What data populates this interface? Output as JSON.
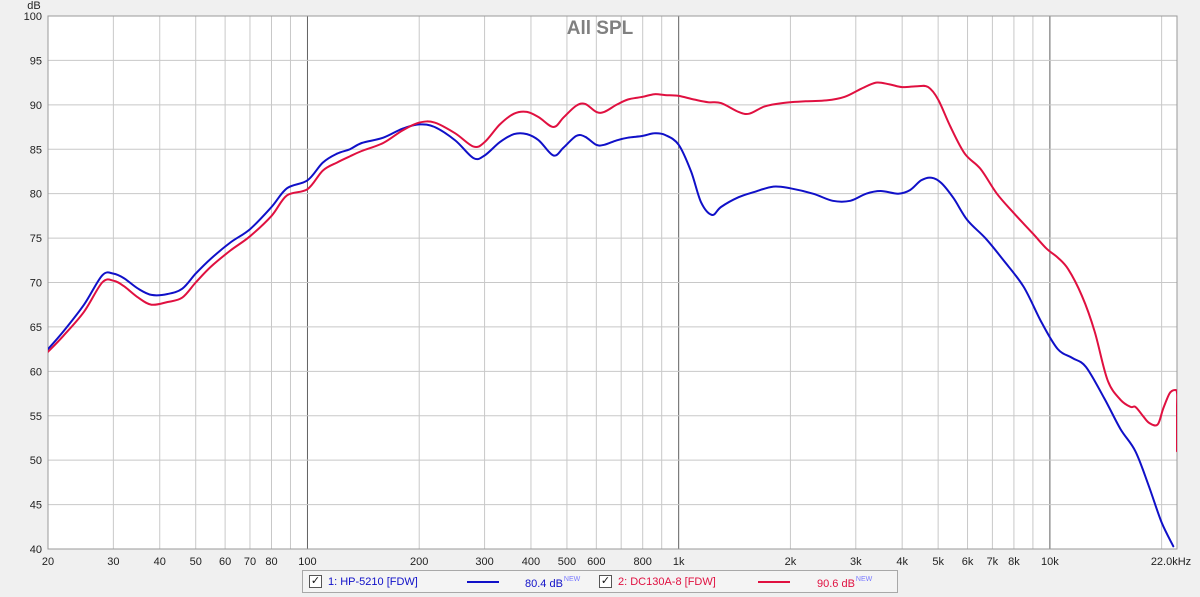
{
  "chart_data": {
    "type": "line",
    "title": "All SPL",
    "ylabel": "dB",
    "xlabel": "",
    "xscale": "log",
    "xlim": [
      20,
      22000
    ],
    "ylim": [
      40,
      100
    ],
    "grid": true,
    "y_ticks": [
      "40",
      "45",
      "50",
      "55",
      "60",
      "65",
      "70",
      "75",
      "80",
      "85",
      "90",
      "95",
      "100"
    ],
    "x_ticks": [
      {
        "v": 20,
        "label": "20"
      },
      {
        "v": 30,
        "label": "30"
      },
      {
        "v": 40,
        "label": "40"
      },
      {
        "v": 50,
        "label": "50"
      },
      {
        "v": 60,
        "label": "60"
      },
      {
        "v": 70,
        "label": "70"
      },
      {
        "v": 80,
        "label": "80"
      },
      {
        "v": 100,
        "label": "100"
      },
      {
        "v": 200,
        "label": "200"
      },
      {
        "v": 300,
        "label": "300"
      },
      {
        "v": 400,
        "label": "400"
      },
      {
        "v": 500,
        "label": "500"
      },
      {
        "v": 600,
        "label": "600"
      },
      {
        "v": 800,
        "label": "800"
      },
      {
        "v": 1000,
        "label": "1k"
      },
      {
        "v": 2000,
        "label": "2k"
      },
      {
        "v": 3000,
        "label": "3k"
      },
      {
        "v": 4000,
        "label": "4k"
      },
      {
        "v": 5000,
        "label": "5k"
      },
      {
        "v": 6000,
        "label": "6k"
      },
      {
        "v": 7000,
        "label": "7k"
      },
      {
        "v": 8000,
        "label": "8k"
      },
      {
        "v": 10000,
        "label": "10k"
      },
      {
        "v": 22000,
        "label": "22.0kHz"
      }
    ],
    "series": [
      {
        "name": "1: HP-5210 [FDW]",
        "color": "#1010c8",
        "points": [
          [
            20,
            62.5
          ],
          [
            22,
            64.5
          ],
          [
            25,
            67.5
          ],
          [
            28,
            70.8
          ],
          [
            30,
            71.0
          ],
          [
            32,
            70.5
          ],
          [
            35,
            69.3
          ],
          [
            38,
            68.6
          ],
          [
            42,
            68.7
          ],
          [
            46,
            69.3
          ],
          [
            50,
            71.0
          ],
          [
            55,
            72.7
          ],
          [
            62,
            74.5
          ],
          [
            70,
            76.0
          ],
          [
            80,
            78.5
          ],
          [
            88,
            80.6
          ],
          [
            100,
            81.5
          ],
          [
            110,
            83.5
          ],
          [
            120,
            84.5
          ],
          [
            130,
            85.0
          ],
          [
            140,
            85.7
          ],
          [
            160,
            86.3
          ],
          [
            180,
            87.3
          ],
          [
            200,
            87.8
          ],
          [
            220,
            87.5
          ],
          [
            250,
            86.0
          ],
          [
            280,
            84.0
          ],
          [
            300,
            84.3
          ],
          [
            330,
            85.8
          ],
          [
            360,
            86.7
          ],
          [
            390,
            86.7
          ],
          [
            420,
            86.0
          ],
          [
            460,
            84.3
          ],
          [
            490,
            85.2
          ],
          [
            530,
            86.5
          ],
          [
            560,
            86.4
          ],
          [
            600,
            85.5
          ],
          [
            630,
            85.5
          ],
          [
            680,
            86.0
          ],
          [
            730,
            86.3
          ],
          [
            800,
            86.5
          ],
          [
            860,
            86.8
          ],
          [
            920,
            86.6
          ],
          [
            1000,
            85.5
          ],
          [
            1080,
            82.5
          ],
          [
            1150,
            79.0
          ],
          [
            1230,
            77.6
          ],
          [
            1300,
            78.5
          ],
          [
            1450,
            79.6
          ],
          [
            1600,
            80.2
          ],
          [
            1800,
            80.8
          ],
          [
            2000,
            80.6
          ],
          [
            2300,
            80.0
          ],
          [
            2600,
            79.2
          ],
          [
            2900,
            79.2
          ],
          [
            3200,
            80.0
          ],
          [
            3500,
            80.3
          ],
          [
            3900,
            80.0
          ],
          [
            4200,
            80.4
          ],
          [
            4500,
            81.5
          ],
          [
            4800,
            81.8
          ],
          [
            5100,
            81.2
          ],
          [
            5500,
            79.5
          ],
          [
            6000,
            77.0
          ],
          [
            6700,
            75.0
          ],
          [
            7500,
            72.5
          ],
          [
            8500,
            69.5
          ],
          [
            9500,
            65.5
          ],
          [
            10500,
            62.5
          ],
          [
            11500,
            61.5
          ],
          [
            12500,
            60.5
          ],
          [
            14000,
            57.0
          ],
          [
            15500,
            53.5
          ],
          [
            17000,
            51.0
          ],
          [
            18500,
            47.0
          ],
          [
            20000,
            43.0
          ],
          [
            21500,
            40.3
          ]
        ]
      },
      {
        "name": "2: DC130A-8 [FDW]",
        "color": "#e01040",
        "points": [
          [
            20,
            62.2
          ],
          [
            22,
            64.0
          ],
          [
            25,
            66.7
          ],
          [
            28,
            70.0
          ],
          [
            30,
            70.2
          ],
          [
            32,
            69.6
          ],
          [
            35,
            68.3
          ],
          [
            38,
            67.5
          ],
          [
            42,
            67.8
          ],
          [
            46,
            68.3
          ],
          [
            50,
            70.0
          ],
          [
            55,
            71.8
          ],
          [
            62,
            73.6
          ],
          [
            70,
            75.2
          ],
          [
            80,
            77.5
          ],
          [
            88,
            79.8
          ],
          [
            100,
            80.5
          ],
          [
            110,
            82.6
          ],
          [
            120,
            83.5
          ],
          [
            130,
            84.2
          ],
          [
            140,
            84.8
          ],
          [
            160,
            85.7
          ],
          [
            180,
            87.1
          ],
          [
            200,
            88.0
          ],
          [
            220,
            88.0
          ],
          [
            250,
            86.8
          ],
          [
            280,
            85.3
          ],
          [
            300,
            85.8
          ],
          [
            330,
            87.8
          ],
          [
            360,
            89.0
          ],
          [
            390,
            89.2
          ],
          [
            420,
            88.6
          ],
          [
            460,
            87.5
          ],
          [
            490,
            88.6
          ],
          [
            530,
            89.9
          ],
          [
            560,
            90.1
          ],
          [
            600,
            89.2
          ],
          [
            630,
            89.2
          ],
          [
            680,
            90.0
          ],
          [
            730,
            90.6
          ],
          [
            800,
            90.9
          ],
          [
            860,
            91.2
          ],
          [
            920,
            91.1
          ],
          [
            1000,
            91.0
          ],
          [
            1100,
            90.6
          ],
          [
            1200,
            90.3
          ],
          [
            1300,
            90.2
          ],
          [
            1450,
            89.2
          ],
          [
            1550,
            89.0
          ],
          [
            1700,
            89.8
          ],
          [
            1900,
            90.2
          ],
          [
            2200,
            90.4
          ],
          [
            2500,
            90.5
          ],
          [
            2800,
            90.9
          ],
          [
            3100,
            91.8
          ],
          [
            3400,
            92.5
          ],
          [
            3700,
            92.3
          ],
          [
            4000,
            92.0
          ],
          [
            4400,
            92.1
          ],
          [
            4700,
            92.0
          ],
          [
            5000,
            90.6
          ],
          [
            5400,
            87.5
          ],
          [
            5900,
            84.5
          ],
          [
            6500,
            82.8
          ],
          [
            7200,
            80.0
          ],
          [
            8000,
            77.8
          ],
          [
            9000,
            75.5
          ],
          [
            9800,
            73.8
          ],
          [
            10500,
            72.8
          ],
          [
            11200,
            71.5
          ],
          [
            12200,
            68.5
          ],
          [
            13200,
            64.5
          ],
          [
            14300,
            59.0
          ],
          [
            15500,
            56.8
          ],
          [
            16500,
            56.0
          ],
          [
            17000,
            56.0
          ],
          [
            17800,
            55.0
          ],
          [
            18500,
            54.2
          ],
          [
            19500,
            54.0
          ],
          [
            20200,
            55.8
          ],
          [
            21000,
            57.5
          ],
          [
            21700,
            57.9
          ],
          [
            22200,
            57.6
          ],
          [
            22600,
            56.0
          ],
          [
            22800,
            53.5
          ],
          [
            23000,
            51.0
          ]
        ]
      }
    ]
  },
  "legend": {
    "items": [
      {
        "checked": "✓",
        "label": "1: HP-5210 [FDW]",
        "value": "80.4 dB",
        "badge": "NEW",
        "color": "#1010c8"
      },
      {
        "checked": "✓",
        "label": "2: DC130A-8 [FDW]",
        "value": "90.6 dB",
        "badge": "NEW",
        "color": "#e01040"
      }
    ]
  }
}
